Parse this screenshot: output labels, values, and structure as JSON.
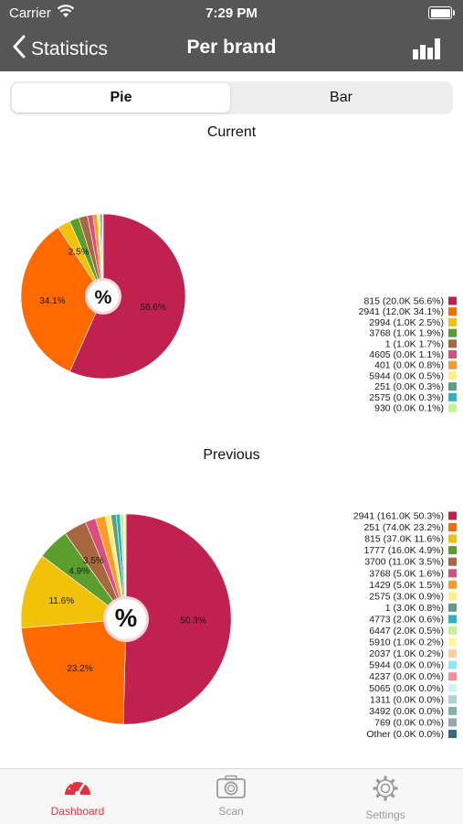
{
  "status": {
    "carrier": "Carrier",
    "time": "7:29 PM"
  },
  "nav": {
    "back_label": "Statistics",
    "title": "Per brand",
    "chart_icon": "bar-chart-icon"
  },
  "segments": {
    "pie": "Pie",
    "bar": "Bar",
    "selected": "Pie"
  },
  "center_label": "%",
  "tabs": [
    {
      "label": "Dashboard",
      "icon": "speedometer-icon",
      "active": true,
      "color": "#e0333e"
    },
    {
      "label": "Scan",
      "icon": "camera-icon",
      "active": false,
      "color": "#9a9a9a"
    },
    {
      "label": "Settings",
      "icon": "gear-icon",
      "active": false,
      "color": "#9a9a9a"
    }
  ],
  "chart_data": [
    {
      "type": "pie",
      "title": "Current",
      "legend_position": "right",
      "slices": [
        {
          "label": "815",
          "count": "20.0K",
          "value": 56.6,
          "color": "#c0214f",
          "legend": "815 (20.0K 56.6%)",
          "pct_label": "56.6%"
        },
        {
          "label": "2941",
          "count": "12.0K",
          "value": 34.1,
          "color": "#ff6a00",
          "legend": "2941 (12.0K 34.1%)",
          "pct_label": "34.1%"
        },
        {
          "label": "2994",
          "count": "1.0K",
          "value": 2.5,
          "color": "#f2c10a",
          "legend": "2994 (1.0K 2.5%)",
          "pct_label": "2.5%"
        },
        {
          "label": "3768",
          "count": "1.0K",
          "value": 1.9,
          "color": "#5c9e2e",
          "legend": "3768 (1.0K 1.9%)",
          "pct_label": "1.9%"
        },
        {
          "label": "1",
          "count": "1.0K",
          "value": 1.7,
          "color": "#a8683f",
          "legend": "1 (1.0K 1.7%)",
          "pct_label": "1.7%"
        },
        {
          "label": "4605",
          "count": "0.0K",
          "value": 1.1,
          "color": "#d94e7e",
          "legend": "4605 (0.0K 1.1%)",
          "pct_label": "1.1%"
        },
        {
          "label": "401",
          "count": "0.0K",
          "value": 0.8,
          "color": "#ff9a22",
          "legend": "401 (0.0K 0.8%)",
          "pct_label": "0.8%"
        },
        {
          "label": "5944",
          "count": "0.0K",
          "value": 0.5,
          "color": "#fff07a",
          "legend": "5944 (0.0K 0.5%)",
          "pct_label": "0.5%"
        },
        {
          "label": "251",
          "count": "0.0K",
          "value": 0.3,
          "color": "#5c9e86",
          "legend": "251 (0.0K 0.3%)",
          "pct_label": "0.3%"
        },
        {
          "label": "2575",
          "count": "0.0K",
          "value": 0.3,
          "color": "#2ab3c6",
          "legend": "2575 (0.0K 0.3%)",
          "pct_label": "0.3%"
        },
        {
          "label": "930",
          "count": "0.0K",
          "value": 0.1,
          "color": "#c3f58d",
          "legend": "930 (0.0K 0.1%)",
          "pct_label": "0.1%"
        }
      ]
    },
    {
      "type": "pie",
      "title": "Previous",
      "legend_position": "right",
      "slices": [
        {
          "label": "2941",
          "count": "161.0K",
          "value": 50.3,
          "color": "#c0214f",
          "legend": "2941 (161.0K 50.3%)",
          "pct_label": "50.3%"
        },
        {
          "label": "251",
          "count": "74.0K",
          "value": 23.2,
          "color": "#ff6a00",
          "legend": "251 (74.0K 23.2%)",
          "pct_label": "23.2%"
        },
        {
          "label": "815",
          "count": "37.0K",
          "value": 11.6,
          "color": "#f2c10a",
          "legend": "815 (37.0K 11.6%)",
          "pct_label": "11.6%"
        },
        {
          "label": "1777",
          "count": "16.0K",
          "value": 4.9,
          "color": "#5c9e2e",
          "legend": "1777 (16.0K 4.9%)",
          "pct_label": "4.9%"
        },
        {
          "label": "3700",
          "count": "11.0K",
          "value": 3.5,
          "color": "#a8683f",
          "legend": "3700 (11.0K 3.5%)",
          "pct_label": "3.5%"
        },
        {
          "label": "3768",
          "count": "5.0K",
          "value": 1.6,
          "color": "#d94e7e",
          "legend": "3768 (5.0K 1.6%)",
          "pct_label": "1.6%"
        },
        {
          "label": "1429",
          "count": "5.0K",
          "value": 1.5,
          "color": "#ff9a22",
          "legend": "1429 (5.0K 1.5%)",
          "pct_label": "1.5%"
        },
        {
          "label": "2575",
          "count": "3.0K",
          "value": 0.9,
          "color": "#fff07a",
          "legend": "2575 (3.0K 0.9%)",
          "pct_label": "0.9%"
        },
        {
          "label": "1",
          "count": "3.0K",
          "value": 0.8,
          "color": "#5c9e86",
          "legend": "1 (3.0K 0.8%)",
          "pct_label": "0.8%"
        },
        {
          "label": "4773",
          "count": "2.0K",
          "value": 0.6,
          "color": "#2ab3c6",
          "legend": "4773 (2.0K 0.6%)",
          "pct_label": "0.6%"
        },
        {
          "label": "6447",
          "count": "2.0K",
          "value": 0.5,
          "color": "#c3f58d",
          "legend": "6447 (2.0K 0.5%)",
          "pct_label": "0.5%"
        },
        {
          "label": "5910",
          "count": "1.0K",
          "value": 0.2,
          "color": "#fff59a",
          "legend": "5910 (1.0K 0.2%)",
          "pct_label": "0.2%"
        },
        {
          "label": "2037",
          "count": "1.0K",
          "value": 0.2,
          "color": "#ffcf99",
          "legend": "2037 (1.0K 0.2%)",
          "pct_label": "0.2%"
        },
        {
          "label": "5944",
          "count": "0.0K",
          "value": 0.0,
          "color": "#8fe8f5",
          "legend": "5944 (0.0K 0.0%)",
          "pct_label": "0.0%"
        },
        {
          "label": "4237",
          "count": "0.0K",
          "value": 0.0,
          "color": "#ff8a95",
          "legend": "4237 (0.0K 0.0%)",
          "pct_label": "0.0%"
        },
        {
          "label": "5065",
          "count": "0.0K",
          "value": 0.0,
          "color": "#c9f5f7",
          "legend": "5065 (0.0K 0.0%)",
          "pct_label": "0.0%"
        },
        {
          "label": "1311",
          "count": "0.0K",
          "value": 0.0,
          "color": "#a6d8cf",
          "legend": "1311 (0.0K 0.0%)",
          "pct_label": "0.0%"
        },
        {
          "label": "3492",
          "count": "0.0K",
          "value": 0.0,
          "color": "#7fb5ad",
          "legend": "3492 (0.0K 0.0%)",
          "pct_label": "0.0%"
        },
        {
          "label": "769",
          "count": "0.0K",
          "value": 0.0,
          "color": "#8fa9b3",
          "legend": "769 (0.0K 0.0%)",
          "pct_label": "0.0%"
        },
        {
          "label": "Other",
          "count": "0.0K",
          "value": 0.0,
          "color": "#2f6f86",
          "legend": "Other (0.0K 0.0%)",
          "pct_label": "0.0%"
        }
      ]
    }
  ]
}
